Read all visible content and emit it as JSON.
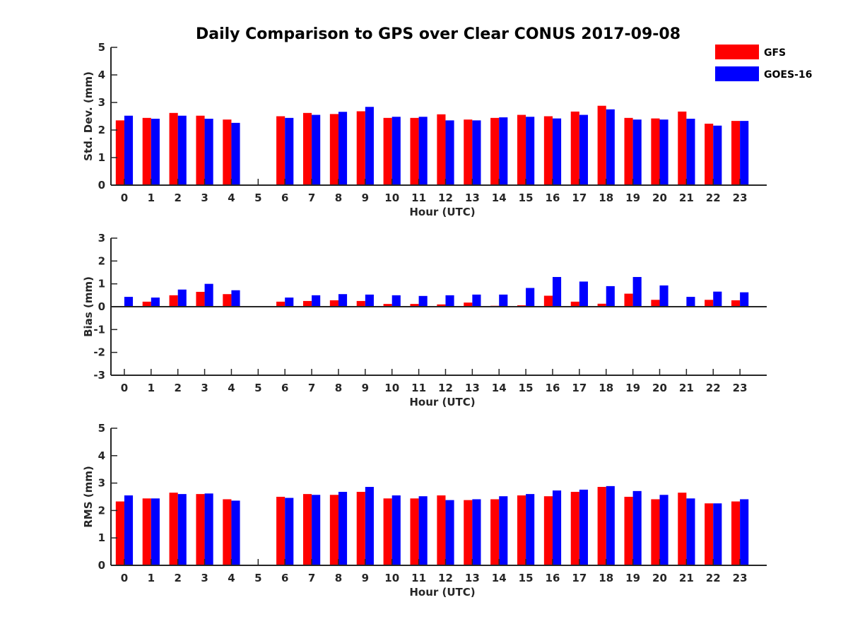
{
  "title": "Daily Comparison to GPS over Clear CONUS 2017-09-08",
  "legend": [
    {
      "label": "GFS",
      "color": "#ff0000"
    },
    {
      "label": "GOES-16",
      "color": "#0000ff"
    }
  ],
  "chart_data": [
    {
      "type": "bar",
      "xlabel": "Hour (UTC)",
      "ylabel": "Std. Dev. (mm)",
      "ylim": [
        0,
        5
      ],
      "yticks": [
        "0",
        "1",
        "2",
        "3",
        "4",
        "5"
      ],
      "categories": [
        "0",
        "1",
        "2",
        "3",
        "4",
        "5",
        "6",
        "7",
        "8",
        "9",
        "10",
        "11",
        "12",
        "13",
        "14",
        "15",
        "16",
        "17",
        "18",
        "19",
        "20",
        "21",
        "22",
        "23"
      ],
      "series": [
        {
          "name": "GFS",
          "values": [
            2.35,
            2.44,
            2.62,
            2.52,
            2.38,
            null,
            2.5,
            2.62,
            2.58,
            2.68,
            2.44,
            2.44,
            2.57,
            2.38,
            2.44,
            2.55,
            2.5,
            2.67,
            2.88,
            2.44,
            2.42,
            2.67,
            2.23,
            2.33
          ]
        },
        {
          "name": "GOES-16",
          "values": [
            2.52,
            2.41,
            2.52,
            2.41,
            2.26,
            null,
            2.44,
            2.55,
            2.66,
            2.84,
            2.48,
            2.48,
            2.35,
            2.35,
            2.46,
            2.48,
            2.42,
            2.55,
            2.75,
            2.38,
            2.38,
            2.41,
            2.16,
            2.33
          ]
        }
      ]
    },
    {
      "type": "bar",
      "xlabel": "Hour (UTC)",
      "ylabel": "Bias (mm)",
      "ylim": [
        -3,
        3
      ],
      "yticks": [
        "-3",
        "-2",
        "-1",
        "0",
        "1",
        "2",
        "3"
      ],
      "categories": [
        "0",
        "1",
        "2",
        "3",
        "4",
        "5",
        "6",
        "7",
        "8",
        "9",
        "10",
        "11",
        "12",
        "13",
        "14",
        "15",
        "16",
        "17",
        "18",
        "19",
        "20",
        "21",
        "22",
        "23"
      ],
      "series": [
        {
          "name": "GFS",
          "values": [
            0.0,
            0.22,
            0.5,
            0.65,
            0.55,
            null,
            0.22,
            0.25,
            0.28,
            0.25,
            0.12,
            0.12,
            0.1,
            0.18,
            0.04,
            0.06,
            0.48,
            0.22,
            0.13,
            0.57,
            0.3,
            0.0,
            0.3,
            0.28
          ]
        },
        {
          "name": "GOES-16",
          "values": [
            0.43,
            0.4,
            0.75,
            1.0,
            0.72,
            null,
            0.4,
            0.5,
            0.55,
            0.53,
            0.5,
            0.47,
            0.5,
            0.53,
            0.53,
            0.82,
            1.3,
            1.1,
            0.9,
            1.3,
            0.93,
            0.43,
            0.66,
            0.63
          ]
        }
      ]
    },
    {
      "type": "bar",
      "xlabel": "Hour (UTC)",
      "ylabel": "RMS (mm)",
      "ylim": [
        0,
        5
      ],
      "yticks": [
        "0",
        "1",
        "2",
        "3",
        "4",
        "5"
      ],
      "categories": [
        "0",
        "1",
        "2",
        "3",
        "4",
        "5",
        "6",
        "7",
        "8",
        "9",
        "10",
        "11",
        "12",
        "13",
        "14",
        "15",
        "16",
        "17",
        "18",
        "19",
        "20",
        "21",
        "22",
        "23"
      ],
      "series": [
        {
          "name": "GFS",
          "values": [
            2.33,
            2.44,
            2.65,
            2.6,
            2.41,
            null,
            2.5,
            2.6,
            2.57,
            2.68,
            2.44,
            2.44,
            2.55,
            2.38,
            2.41,
            2.55,
            2.52,
            2.68,
            2.86,
            2.5,
            2.41,
            2.65,
            2.26,
            2.33
          ]
        },
        {
          "name": "GOES-16",
          "values": [
            2.55,
            2.44,
            2.6,
            2.62,
            2.36,
            null,
            2.46,
            2.57,
            2.68,
            2.86,
            2.55,
            2.52,
            2.38,
            2.41,
            2.52,
            2.6,
            2.73,
            2.76,
            2.89,
            2.71,
            2.57,
            2.44,
            2.26,
            2.41
          ]
        }
      ]
    }
  ]
}
